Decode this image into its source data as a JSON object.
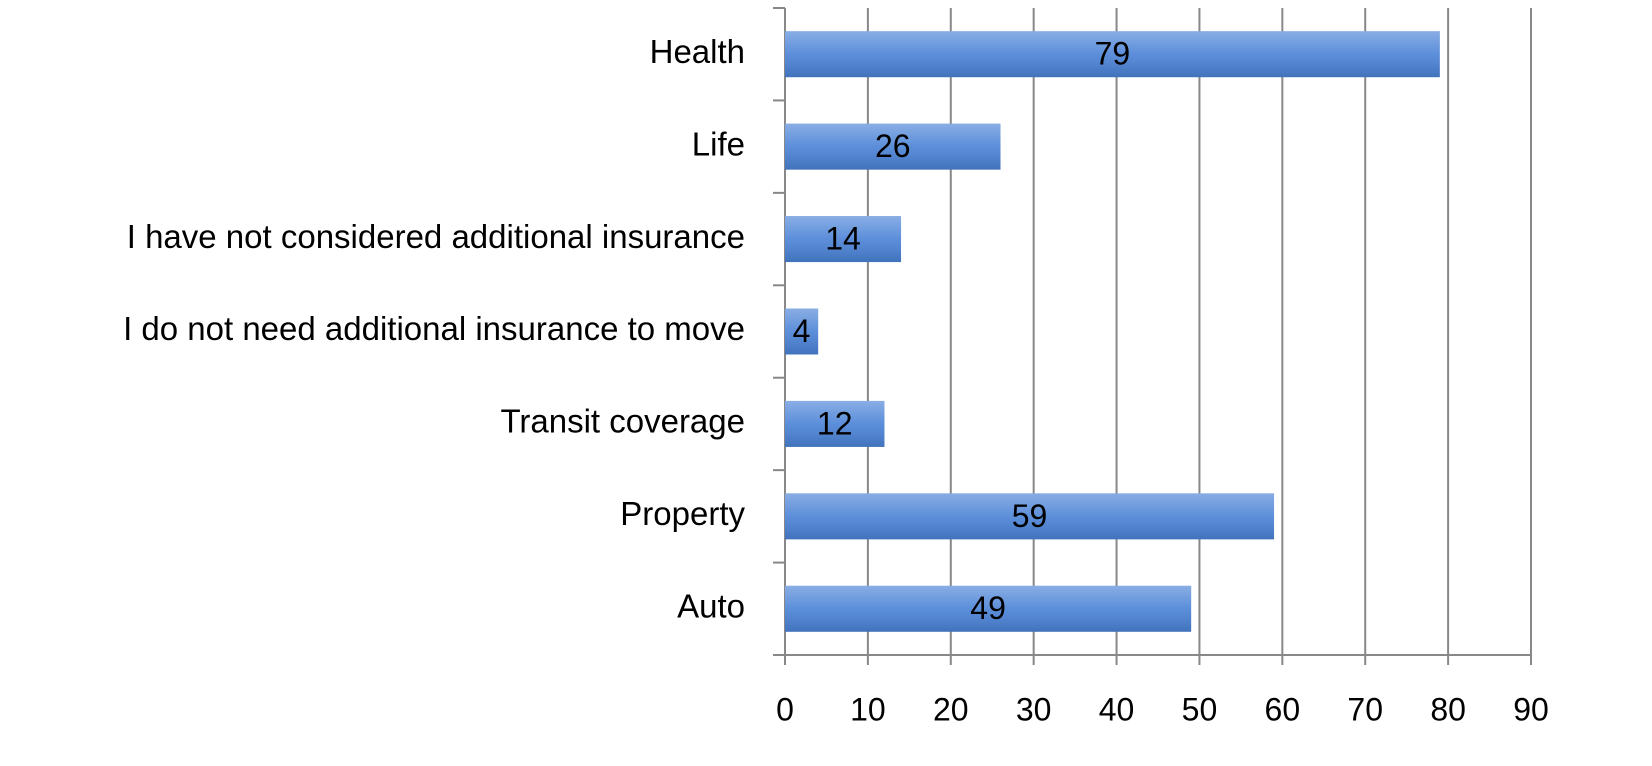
{
  "chart_data": {
    "type": "bar",
    "orientation": "horizontal",
    "categories": [
      "Health",
      "Life",
      "I have not considered additional insurance",
      "I do not need additional insurance to move",
      "Transit coverage",
      "Property",
      "Auto"
    ],
    "values": [
      79,
      26,
      14,
      4,
      12,
      59,
      49
    ],
    "color": "#4a82d6",
    "xlim": [
      0,
      90
    ],
    "xticks": [
      0,
      10,
      20,
      30,
      40,
      50,
      60,
      70,
      80,
      90
    ],
    "grid": true
  }
}
